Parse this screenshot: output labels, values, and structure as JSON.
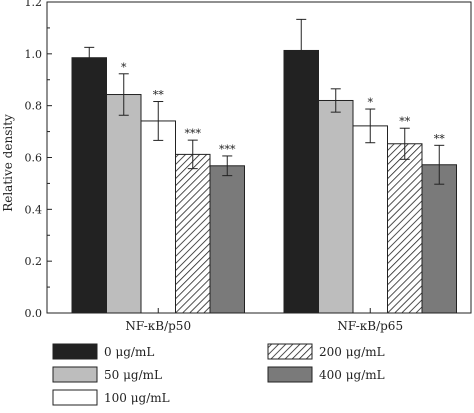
{
  "chart_data": {
    "type": "bar",
    "ylabel": "Relative density",
    "ylim": [
      0,
      1.2
    ],
    "yticks": [
      "0.0",
      "0.2",
      "0.4",
      "0.6",
      "0.8",
      "1.0",
      "1.2"
    ],
    "categories": [
      "NF-κB/p50",
      "NF-κB/p65"
    ],
    "series": [
      {
        "name": "0 μg/mL",
        "values": [
          0.985,
          1.013
        ],
        "errors": [
          0.04,
          0.12
        ],
        "sig": [
          "",
          ""
        ],
        "fill": "#222222",
        "pattern": "solid"
      },
      {
        "name": "50 μg/mL",
        "values": [
          0.843,
          0.82
        ],
        "errors": [
          0.08,
          0.045
        ],
        "sig": [
          "*",
          ""
        ],
        "fill": "#bdbdbd",
        "pattern": "solid"
      },
      {
        "name": "100 μg/mL",
        "values": [
          0.741,
          0.722
        ],
        "errors": [
          0.075,
          0.065
        ],
        "sig": [
          "**",
          "*"
        ],
        "fill": "#ffffff",
        "pattern": "solid"
      },
      {
        "name": "200 μg/mL",
        "values": [
          0.612,
          0.653
        ],
        "errors": [
          0.055,
          0.06
        ],
        "sig": [
          "***",
          "**"
        ],
        "fill": "#ffffff",
        "pattern": "hatch"
      },
      {
        "name": "400 μg/mL",
        "values": [
          0.568,
          0.572
        ],
        "errors": [
          0.038,
          0.075
        ],
        "sig": [
          "***",
          "**"
        ],
        "fill": "#7a7a7a",
        "pattern": "solid"
      }
    ],
    "legend": {
      "placement": "bottom"
    }
  }
}
